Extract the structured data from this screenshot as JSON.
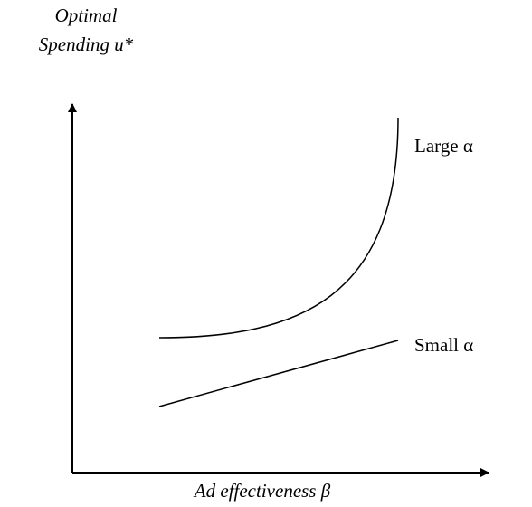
{
  "y_axis_label": [
    "Optimal",
    "Spending u*"
  ],
  "x_axis_label": "Ad effectiveness β",
  "curves": [
    {
      "label": "Large α"
    },
    {
      "label": "Small α"
    }
  ]
}
